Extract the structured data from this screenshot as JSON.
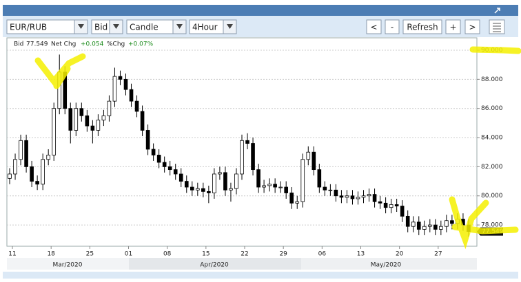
{
  "toolbar": {
    "symbol": "EUR/RUB",
    "side": "Bid",
    "style": "Candle",
    "interval": "4Hour",
    "prev": "<",
    "zoom_out": "-",
    "refresh": "Refresh",
    "zoom_in": "+",
    "next": ">"
  },
  "info": {
    "bid_label": "Bid",
    "net_chg_label": "Net Chg",
    "net_chg": "+0.054",
    "pct_chg_label": "%Chg",
    "pct_chg": "+0.07%"
  },
  "chart_data": {
    "type": "candlestick",
    "color": "#000000",
    "x": [
      "2020-03-10",
      "2020-03-11",
      "2020-03-12",
      "2020-03-13",
      "2020-03-14",
      "2020-03-15",
      "2020-03-16",
      "2020-03-17",
      "2020-03-18",
      "2020-03-19",
      "2020-03-20",
      "2020-03-21",
      "2020-03-22",
      "2020-03-23",
      "2020-03-24",
      "2020-03-25",
      "2020-03-26",
      "2020-03-27",
      "2020-03-28",
      "2020-03-29",
      "2020-03-30",
      "2020-03-31",
      "2020-04-01",
      "2020-04-02",
      "2020-04-03",
      "2020-04-04",
      "2020-04-05",
      "2020-04-06",
      "2020-04-07",
      "2020-04-08",
      "2020-04-09",
      "2020-04-10",
      "2020-04-11",
      "2020-04-12",
      "2020-04-13",
      "2020-04-14",
      "2020-04-15",
      "2020-04-16",
      "2020-04-17",
      "2020-04-18",
      "2020-04-19",
      "2020-04-20",
      "2020-04-21",
      "2020-04-22",
      "2020-04-23",
      "2020-04-24",
      "2020-04-25",
      "2020-04-26",
      "2020-04-27",
      "2020-04-28",
      "2020-04-29",
      "2020-04-30",
      "2020-05-01",
      "2020-05-02",
      "2020-05-03",
      "2020-05-04",
      "2020-05-05",
      "2020-05-06",
      "2020-05-07",
      "2020-05-08",
      "2020-05-09",
      "2020-05-10",
      "2020-05-11",
      "2020-05-12",
      "2020-05-13",
      "2020-05-14",
      "2020-05-15",
      "2020-05-16",
      "2020-05-17",
      "2020-05-18",
      "2020-05-19",
      "2020-05-20",
      "2020-05-21",
      "2020-05-22",
      "2020-05-23",
      "2020-05-24",
      "2020-05-25",
      "2020-05-26",
      "2020-05-27",
      "2020-05-28",
      "2020-05-29",
      "2020-05-30",
      "2020-05-31",
      "2020-06-01"
    ],
    "open": [
      81.2,
      81.5,
      82.5,
      83.8,
      82,
      81,
      80.8,
      82.5,
      82.8,
      86,
      88.5,
      86,
      84.5,
      86,
      85.5,
      84.8,
      84.5,
      85.2,
      85.5,
      86.5,
      88.2,
      88,
      87.3,
      86.5,
      85.8,
      84.5,
      83.2,
      82.8,
      82.3,
      82,
      81.8,
      81.5,
      81,
      80.6,
      80.4,
      80.5,
      80.3,
      80.2,
      81.5,
      81.6,
      80.4,
      80.5,
      81.5,
      83.8,
      83.6,
      81.8,
      80.6,
      80.7,
      80.8,
      80.6,
      80.6,
      80.2,
      79.5,
      79.6,
      82.5,
      83,
      81.8,
      80.6,
      80.4,
      80.4,
      80,
      79.9,
      80,
      79.8,
      79.9,
      80,
      80.1,
      79.6,
      79.5,
      79.2,
      79.4,
      79.3,
      78.6,
      77.9,
      78.2,
      77.7,
      77.9,
      78,
      77.7,
      77.9,
      78.3,
      78.1,
      78.4,
      78
    ],
    "high": [
      81.9,
      82.9,
      84.2,
      84.2,
      82.4,
      81.4,
      82.9,
      83.2,
      86.4,
      89.7,
      88.9,
      86.4,
      86.4,
      86.4,
      85.9,
      85.2,
      85.6,
      85.9,
      86.9,
      88.8,
      88.6,
      88.4,
      87.7,
      86.9,
      86.2,
      84.9,
      83.6,
      83.2,
      82.7,
      82.4,
      82.2,
      81.9,
      81.4,
      81,
      80.9,
      80.9,
      80.7,
      81.9,
      82,
      82,
      80.9,
      81.9,
      84.2,
      84.3,
      84,
      82.2,
      81.1,
      81.2,
      81.2,
      81,
      81,
      80.6,
      80,
      82.9,
      83.4,
      83.4,
      82.2,
      81,
      80.8,
      80.8,
      80.4,
      80.4,
      80.4,
      80.3,
      80.4,
      80.5,
      80.5,
      80,
      79.9,
      79.8,
      79.8,
      79.7,
      79,
      78.6,
      78.6,
      78.3,
      78.4,
      78.4,
      78.3,
      78.7,
      78.7,
      78.8,
      78.8,
      78.4
    ],
    "low": [
      80.8,
      81.1,
      82.1,
      81.6,
      80.6,
      80.4,
      80.4,
      82.1,
      82.4,
      85.6,
      85.6,
      83.6,
      84.1,
      85.1,
      84.4,
      83.6,
      84.1,
      84.8,
      85.1,
      86.1,
      87.6,
      86.9,
      86.1,
      85.4,
      84.1,
      82.8,
      82.4,
      81.9,
      81.6,
      81.4,
      81.1,
      80.6,
      80.2,
      80,
      80,
      79.9,
      79.5,
      79.8,
      81.1,
      80,
      79.6,
      80.1,
      81.1,
      83.2,
      81.4,
      80.2,
      80.2,
      80.3,
      80.2,
      80.2,
      79.8,
      79.1,
      79.1,
      79.2,
      82.1,
      81.4,
      80.2,
      80,
      80,
      79.6,
      79.5,
      79.5,
      79.4,
      79.4,
      79.5,
      79.6,
      79.2,
      79.1,
      78.8,
      78.8,
      78.9,
      78.2,
      77.5,
      77.5,
      77.3,
      77.3,
      77.5,
      77.3,
      77.3,
      77.5,
      77.7,
      77.7,
      77.6,
      77.2
    ],
    "close": [
      81.5,
      82.5,
      83.8,
      82,
      81,
      80.8,
      82.5,
      82.8,
      86,
      88.5,
      86,
      84.5,
      86,
      85.5,
      84.8,
      84.5,
      85.2,
      85.5,
      86.5,
      88.2,
      88,
      87.3,
      86.5,
      85.8,
      84.5,
      83.2,
      82.8,
      82.3,
      82,
      81.8,
      81.5,
      81,
      80.6,
      80.4,
      80.5,
      80.3,
      80.2,
      81.5,
      81.6,
      80.4,
      80.5,
      81.5,
      83.8,
      83.6,
      81.8,
      80.6,
      80.7,
      80.8,
      80.6,
      80.6,
      80.2,
      79.5,
      79.6,
      82.5,
      83,
      81.8,
      80.6,
      80.4,
      80.4,
      80,
      79.9,
      80,
      79.8,
      79.9,
      80,
      80.1,
      79.6,
      79.5,
      79.2,
      79.4,
      79.3,
      78.6,
      77.9,
      78.2,
      77.7,
      77.9,
      78,
      77.7,
      77.9,
      78.3,
      78.1,
      78.4,
      78,
      77.549
    ],
    "xlim": [
      "2020-03-10",
      "2020-06-03"
    ],
    "xticks": [
      {
        "value": "2020-03-11",
        "label": "11"
      },
      {
        "value": "2020-03-18",
        "label": "18"
      },
      {
        "value": "2020-03-25",
        "label": "25"
      },
      {
        "value": "2020-04-01",
        "label": "01"
      },
      {
        "value": "2020-04-08",
        "label": "08"
      },
      {
        "value": "2020-04-15",
        "label": "15"
      },
      {
        "value": "2020-04-22",
        "label": "22"
      },
      {
        "value": "2020-04-29",
        "label": "29"
      },
      {
        "value": "2020-05-06",
        "label": "06"
      },
      {
        "value": "2020-05-13",
        "label": "13"
      },
      {
        "value": "2020-05-20",
        "label": "20"
      },
      {
        "value": "2020-05-27",
        "label": "27"
      }
    ],
    "months": [
      "Mar/2020",
      "Apr/2020",
      "May/2020"
    ],
    "ylim": [
      76.54,
      90.85
    ],
    "yticks": [
      {
        "value": 78,
        "label": "78.000"
      },
      {
        "value": 80,
        "label": "80.000"
      },
      {
        "value": 82,
        "label": "82.000"
      },
      {
        "value": 84,
        "label": "84.000"
      },
      {
        "value": 86,
        "label": "86.000"
      },
      {
        "value": 88,
        "label": "88.000"
      },
      {
        "value": 90,
        "label": "90.000"
      }
    ],
    "grid": true
  }
}
